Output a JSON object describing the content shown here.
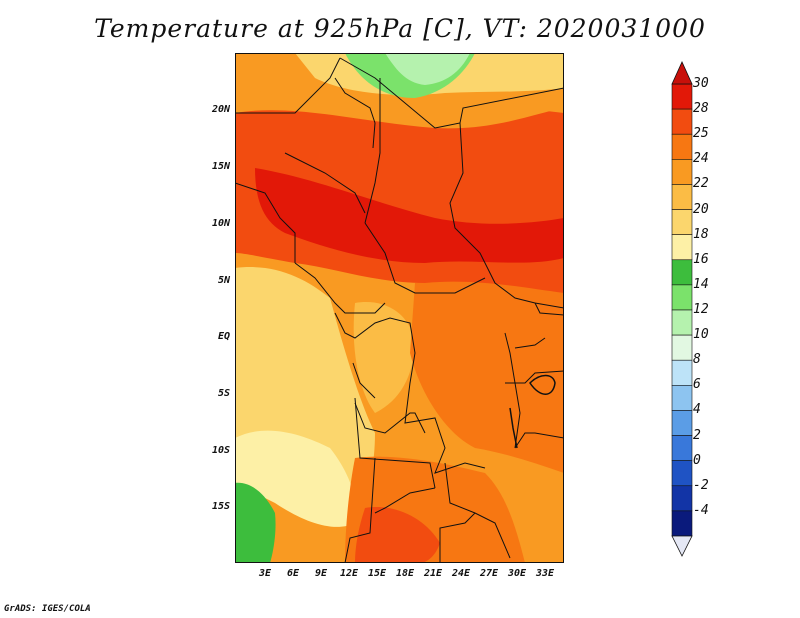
{
  "title": "Temperature at 925hPa [C], VT: 2020031000",
  "credit": "GrADS: IGES/COLA",
  "lat_ticks": [
    "20N",
    "15N",
    "10N",
    "5N",
    "EQ",
    "5S",
    "10S",
    "15S"
  ],
  "lon_ticks": [
    "3E",
    "6E",
    "9E",
    "12E",
    "15E",
    "18E",
    "21E",
    "24E",
    "27E",
    "30E",
    "33E"
  ],
  "colorbar": {
    "labels": [
      "30",
      "28",
      "25",
      "24",
      "22",
      "20",
      "18",
      "16",
      "14",
      "12",
      "10",
      "8",
      "6",
      "4",
      "2",
      "0",
      "-2",
      "-4"
    ],
    "colors": [
      "#e21808",
      "#f24c10",
      "#f77712",
      "#f99a22",
      "#fbbc45",
      "#fbd66d",
      "#fdf0a6",
      "#3dbd3d",
      "#7be26b",
      "#b5f2ae",
      "#e2f8e2",
      "#bde3f8",
      "#8dc4f0",
      "#5b9de6",
      "#3978da",
      "#1f53c4",
      "#1234a6",
      "#0a1a7c"
    ],
    "under_color": "#e5e8f5",
    "over_color": "#c8100a"
  },
  "domain": {
    "lon_range": [
      "0E",
      "35E"
    ],
    "lat_range": [
      "20S",
      "24N"
    ]
  }
}
